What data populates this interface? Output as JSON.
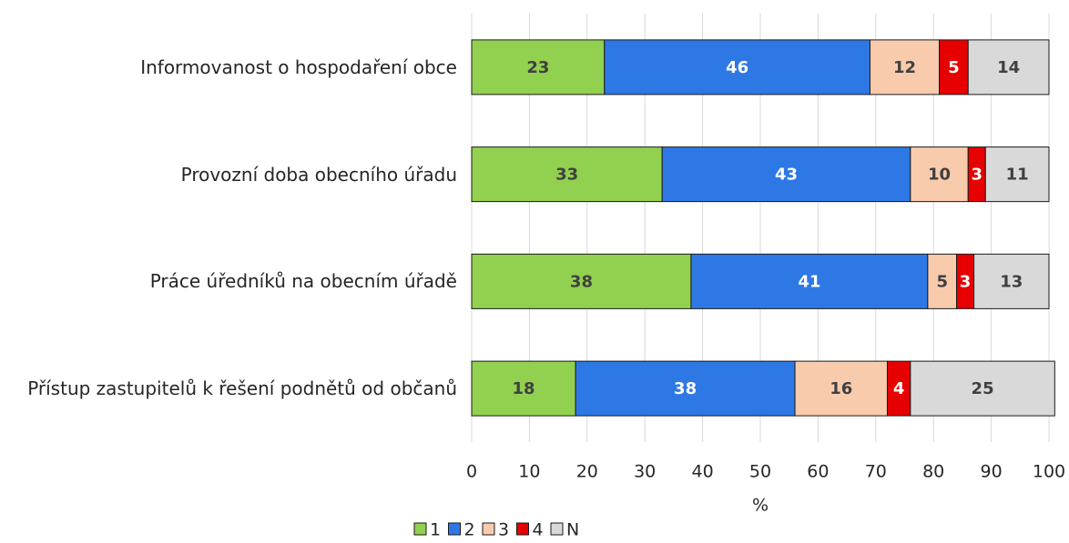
{
  "chart_data": {
    "type": "stacked-barh",
    "categories": [
      "Informovanost o hospodaření obce",
      "Provozní doba obecního úřadu",
      "Práce úředníků na obecním úřadě",
      "Přístup zastupitelů k řešení podnětů od občanů"
    ],
    "series": [
      {
        "name": "1",
        "color": "#92d050",
        "label_color": "#404040",
        "values": [
          23,
          33,
          38,
          18
        ]
      },
      {
        "name": "2",
        "color": "#2e78e6",
        "label_color": "#ffffff",
        "values": [
          46,
          43,
          41,
          38
        ]
      },
      {
        "name": "3",
        "color": "#f8cbad",
        "label_color": "#404040",
        "values": [
          12,
          10,
          5,
          16
        ]
      },
      {
        "name": "4",
        "color": "#e60000",
        "label_color": "#ffffff",
        "values": [
          5,
          3,
          3,
          4
        ]
      },
      {
        "name": "N",
        "color": "#d9d9d9",
        "label_color": "#404040",
        "values": [
          14,
          11,
          13,
          25
        ]
      }
    ],
    "xlabel": "%",
    "xlim": [
      0,
      100
    ],
    "xticks": [
      0,
      10,
      20,
      30,
      40,
      50,
      60,
      70,
      80,
      90,
      100
    ],
    "grid": true,
    "legend": "bottom"
  }
}
